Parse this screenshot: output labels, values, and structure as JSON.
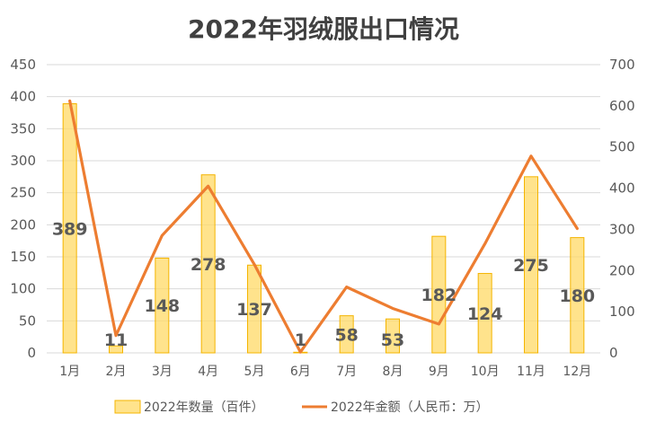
{
  "chart_data": {
    "type": "bar",
    "title": "2022年羽绒服出口情况",
    "categories": [
      "1月",
      "2月",
      "3月",
      "4月",
      "5月",
      "6月",
      "7月",
      "8月",
      "9月",
      "10月",
      "11月",
      "12月"
    ],
    "series": [
      {
        "name": "2022年数量（百件）",
        "type": "bar",
        "axis": "left",
        "values": [
          389,
          11,
          148,
          278,
          137,
          1,
          58,
          53,
          182,
          124,
          275,
          180
        ],
        "color": "#FFD966"
      },
      {
        "name": "2022年金额（人民币：万）",
        "type": "line",
        "axis": "right",
        "values": [
          612,
          42,
          285,
          405,
          215,
          2,
          160,
          108,
          70,
          265,
          478,
          302
        ],
        "color": "#ED7D31"
      }
    ],
    "y_left": {
      "min": 0,
      "max": 450,
      "step": 50
    },
    "y_right": {
      "min": 0,
      "max": 700,
      "step": 100
    },
    "grid": true,
    "legend": "bottom"
  }
}
